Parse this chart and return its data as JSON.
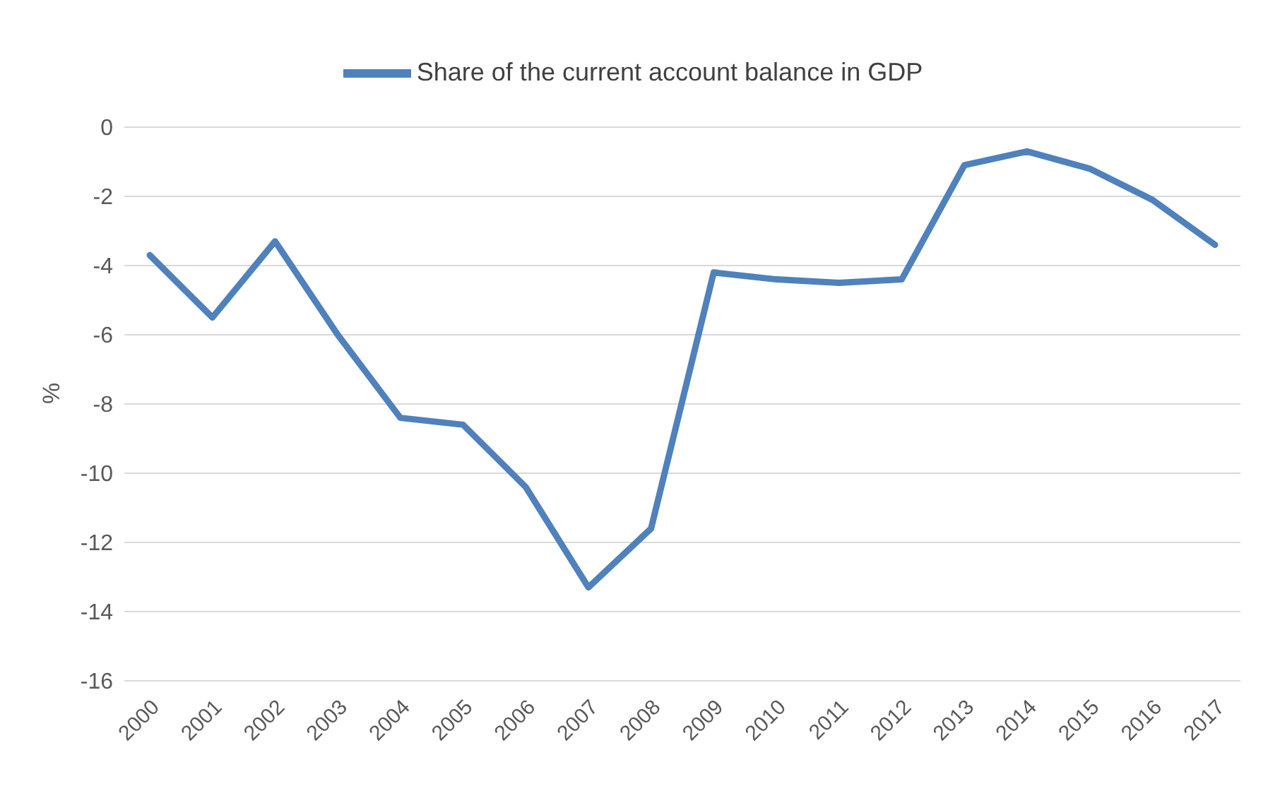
{
  "chart_data": {
    "type": "line",
    "ylabel": "%",
    "categories": [
      "2000",
      "2001",
      "2002",
      "2003",
      "2004",
      "2005",
      "2006",
      "2007",
      "2008",
      "2009",
      "2010",
      "2011",
      "2012",
      "2013",
      "2014",
      "2015",
      "2016",
      "2017"
    ],
    "series": [
      {
        "name": "Share of the current account balance in GDP",
        "color": "#4f81bd",
        "values": [
          -3.7,
          -5.5,
          -3.3,
          -6.0,
          -8.4,
          -8.6,
          -10.4,
          -13.3,
          -11.6,
          -4.2,
          -4.4,
          -4.5,
          -4.4,
          -1.1,
          -0.7,
          -1.2,
          -2.1,
          -3.4
        ]
      }
    ],
    "ylim": [
      -16,
      0
    ],
    "yticks": [
      -16,
      -14,
      -12,
      -10,
      -8,
      -6,
      -4,
      -2,
      0
    ],
    "grid": "y",
    "legend": "top",
    "marker": "none",
    "line_style": "solid"
  }
}
